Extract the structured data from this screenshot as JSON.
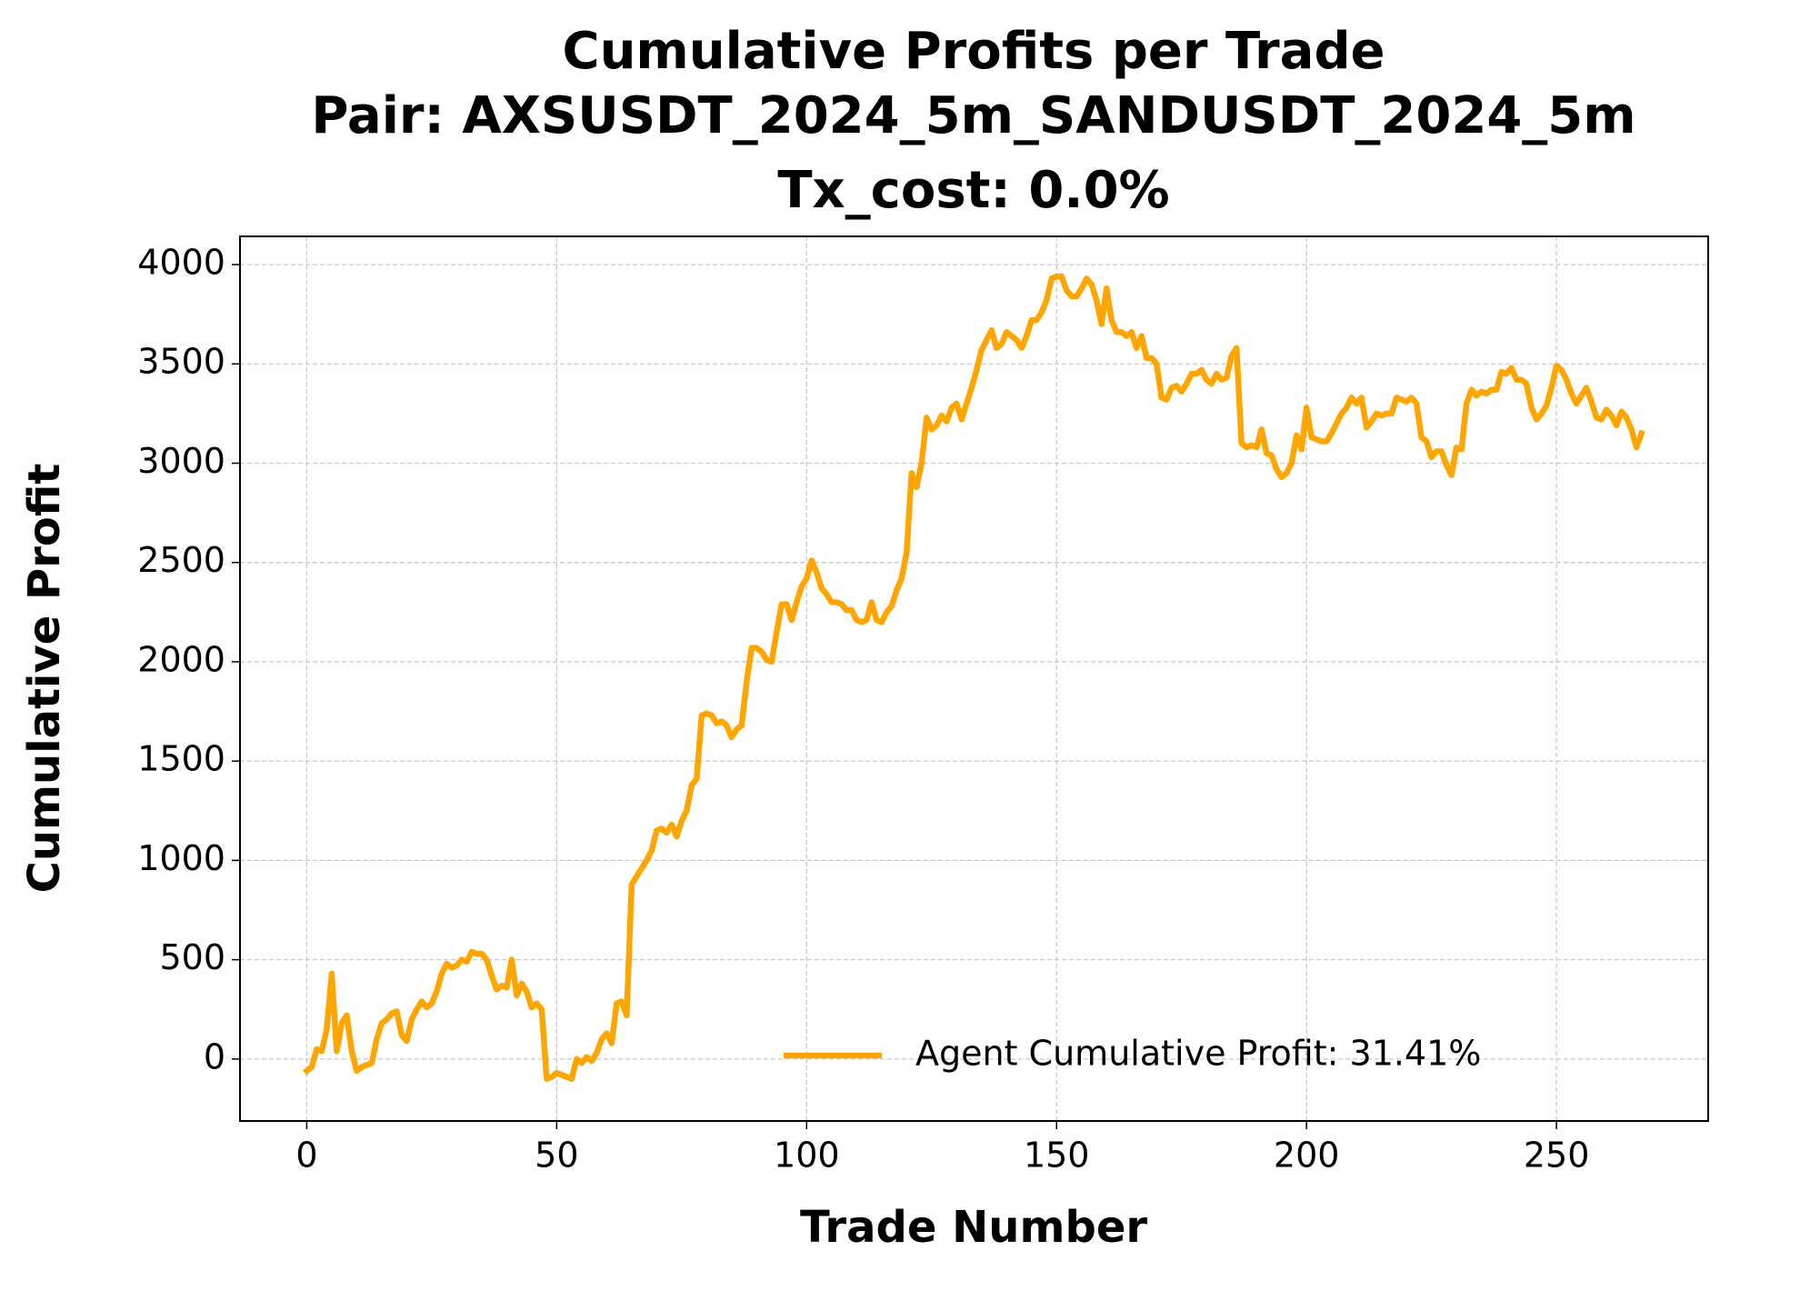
{
  "chart_data": {
    "type": "line",
    "title": [
      "Cumulative Profits per Trade",
      "Pair: AXSUSDT_2024_5m_SANDUSDT_2024_5m",
      "Tx_cost: 0.0%"
    ],
    "xlabel": "Trade Number",
    "ylabel": "Cumulative Profit",
    "x": [
      0,
      1,
      2,
      3,
      4,
      5,
      6,
      7,
      8,
      9,
      10,
      11,
      12,
      13,
      14,
      15,
      16,
      17,
      18,
      19,
      20,
      21,
      22,
      23,
      24,
      25,
      26,
      27,
      28,
      29,
      30,
      31,
      32,
      33,
      34,
      35,
      36,
      37,
      38,
      39,
      40,
      41,
      42,
      43,
      44,
      45,
      46,
      47,
      48,
      49,
      50,
      51,
      52,
      53,
      54,
      55,
      56,
      57,
      58,
      59,
      60,
      61,
      62,
      63,
      64,
      65,
      66,
      67,
      68,
      69,
      70,
      71,
      72,
      73,
      74,
      75,
      76,
      77,
      78,
      79,
      80,
      81,
      82,
      83,
      84,
      85,
      86,
      87,
      88,
      89,
      90,
      91,
      92,
      93,
      94,
      95,
      96,
      97,
      98,
      99,
      100,
      101,
      102,
      103,
      104,
      105,
      106,
      107,
      108,
      109,
      110,
      111,
      112,
      113,
      114,
      115,
      116,
      117,
      118,
      119,
      120,
      121,
      122,
      123,
      124,
      125,
      126,
      127,
      128,
      129,
      130,
      131,
      132,
      133,
      134,
      135,
      136,
      137,
      138,
      139,
      140,
      141,
      142,
      143,
      144,
      145,
      146,
      147,
      148,
      149,
      150,
      151,
      152,
      153,
      154,
      155,
      156,
      157,
      158,
      159,
      160,
      161,
      162,
      163,
      164,
      165,
      166,
      167,
      168,
      169,
      170,
      171,
      172,
      173,
      174,
      175,
      176,
      177,
      178,
      179,
      180,
      181,
      182,
      183,
      184,
      185,
      186,
      187,
      188,
      189,
      190,
      191,
      192,
      193,
      194,
      195,
      196,
      197,
      198,
      199,
      200,
      201,
      202,
      203,
      204,
      205,
      206,
      207,
      208,
      209,
      210,
      211,
      212,
      213,
      214,
      215,
      216,
      217,
      218,
      219,
      220,
      221,
      222,
      223,
      224,
      225,
      226,
      227,
      228,
      229,
      230,
      231,
      232,
      233,
      234,
      235,
      236,
      237,
      238,
      239,
      240,
      241,
      242,
      243,
      244,
      245,
      246,
      247,
      248,
      249,
      250,
      251,
      252,
      253,
      254,
      255,
      256,
      257,
      258,
      259,
      260,
      261,
      262,
      263,
      264,
      265,
      266,
      267
    ],
    "series": [
      {
        "name": "Agent Cumulative Profit: 31.41%",
        "color": "#ffa500",
        "values": [
          -60,
          -40,
          50,
          40,
          150,
          430,
          40,
          180,
          220,
          40,
          -60,
          -40,
          -30,
          -20,
          100,
          180,
          200,
          230,
          240,
          120,
          90,
          200,
          250,
          290,
          260,
          280,
          340,
          430,
          480,
          460,
          470,
          500,
          490,
          540,
          530,
          530,
          500,
          420,
          350,
          370,
          360,
          500,
          320,
          380,
          340,
          260,
          280,
          250,
          -100,
          -90,
          -70,
          -80,
          -90,
          -100,
          0,
          -20,
          10,
          -10,
          30,
          100,
          130,
          80,
          280,
          290,
          220,
          880,
          920,
          960,
          1000,
          1050,
          1150,
          1160,
          1140,
          1180,
          1120,
          1200,
          1250,
          1380,
          1410,
          1730,
          1740,
          1730,
          1690,
          1700,
          1680,
          1620,
          1660,
          1680,
          1900,
          2070,
          2070,
          2050,
          2010,
          2000,
          2150,
          2290,
          2290,
          2210,
          2300,
          2380,
          2420,
          2510,
          2450,
          2370,
          2340,
          2300,
          2300,
          2290,
          2260,
          2260,
          2210,
          2200,
          2210,
          2300,
          2210,
          2200,
          2250,
          2280,
          2360,
          2420,
          2550,
          2950,
          2880,
          3000,
          3230,
          3170,
          3190,
          3240,
          3210,
          3280,
          3300,
          3220,
          3300,
          3380,
          3470,
          3570,
          3620,
          3670,
          3580,
          3600,
          3660,
          3640,
          3620,
          3580,
          3640,
          3720,
          3720,
          3760,
          3820,
          3930,
          3940,
          3940,
          3870,
          3840,
          3840,
          3880,
          3930,
          3900,
          3820,
          3700,
          3880,
          3720,
          3660,
          3660,
          3640,
          3660,
          3580,
          3640,
          3530,
          3530,
          3500,
          3330,
          3320,
          3380,
          3390,
          3360,
          3400,
          3450,
          3450,
          3470,
          3420,
          3400,
          3450,
          3420,
          3430,
          3540,
          3580,
          3100,
          3080,
          3090,
          3080,
          3170,
          3050,
          3040,
          2970,
          2930,
          2950,
          3000,
          3140,
          3070,
          3280,
          3130,
          3120,
          3110,
          3110,
          3150,
          3200,
          3250,
          3280,
          3330,
          3300,
          3330,
          3180,
          3210,
          3250,
          3240,
          3250,
          3250,
          3330,
          3320,
          3310,
          3330,
          3300,
          3130,
          3110,
          3030,
          3060,
          3060,
          2990,
          2940,
          3080,
          3070,
          3300,
          3370,
          3340,
          3360,
          3350,
          3370,
          3370,
          3460,
          3450,
          3480,
          3420,
          3420,
          3400,
          3280,
          3220,
          3250,
          3290,
          3380,
          3490,
          3470,
          3420,
          3350,
          3300,
          3340,
          3380,
          3310,
          3230,
          3220,
          3270,
          3240,
          3190,
          3260,
          3230,
          3170,
          3080,
          3150
        ]
      }
    ],
    "xlim": [
      -13.35,
      280.35
    ],
    "ylim": [
      -312,
      4142
    ],
    "xticks": [
      0,
      50,
      100,
      150,
      200,
      250
    ],
    "yticks": [
      0,
      500,
      1000,
      1500,
      2000,
      2500,
      3000,
      3500,
      4000
    ],
    "grid": true,
    "legend": "lower right"
  }
}
